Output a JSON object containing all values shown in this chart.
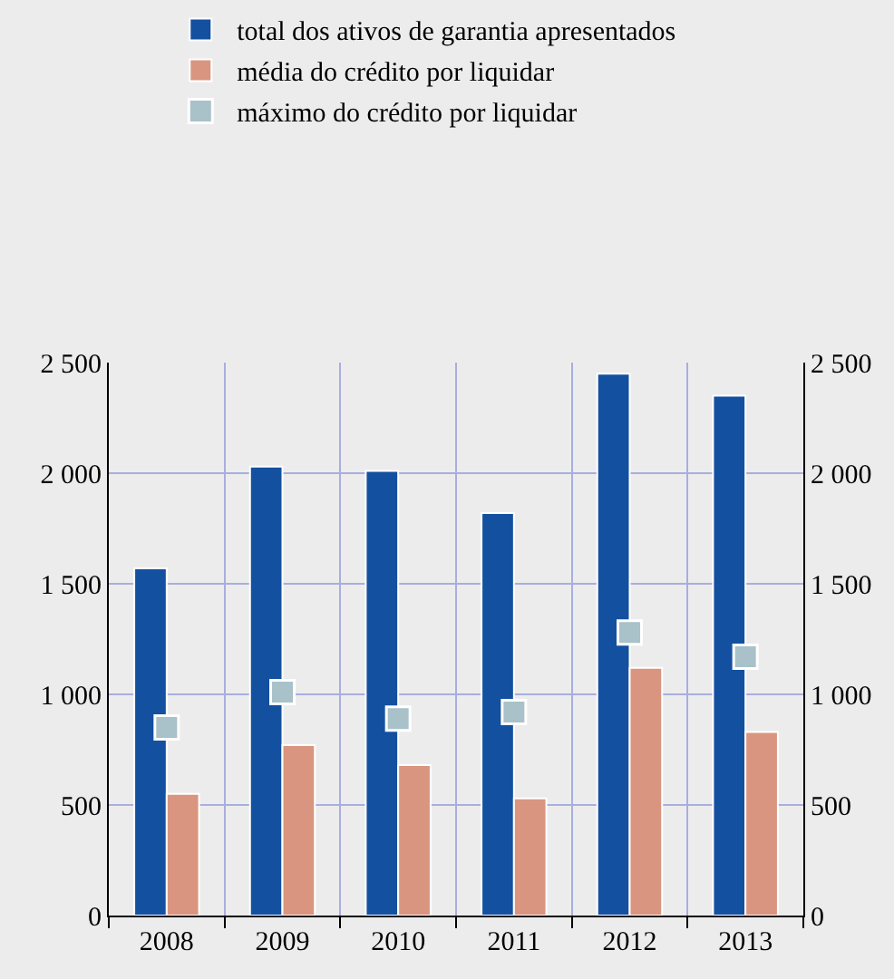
{
  "chart_data": {
    "type": "bar",
    "categories": [
      "2008",
      "2009",
      "2010",
      "2011",
      "2012",
      "2013"
    ],
    "series": [
      {
        "name": "total dos ativos de garantia apresentados",
        "color": "#1450a0",
        "values": [
          1570,
          2030,
          2010,
          1820,
          2450,
          2350
        ]
      },
      {
        "name": "média do crédito por liquidar",
        "color": "#d9957f",
        "values": [
          550,
          770,
          680,
          530,
          1120,
          830
        ]
      },
      {
        "name": "máximo do crédito por liquidar",
        "type": "scatter",
        "marker": "square",
        "color": "#a9c1c9",
        "values": [
          850,
          1010,
          890,
          920,
          1280,
          1170
        ]
      }
    ],
    "ylim": [
      0,
      2500
    ],
    "yticks": [
      0,
      500,
      {
        "value": 1000,
        "label": "1 000"
      },
      {
        "value": 1500,
        "label": "1 500"
      },
      {
        "value": 2000,
        "label": "2 000"
      },
      {
        "value": 2500,
        "label": "2 500"
      }
    ],
    "y2lim": [
      0,
      2500
    ],
    "y2ticks": [
      0,
      500,
      {
        "value": 1000,
        "label": "1 000"
      },
      {
        "value": 1500,
        "label": "1 500"
      },
      {
        "value": 2000,
        "label": "2 000"
      },
      {
        "value": 2500,
        "label": "2 500"
      }
    ],
    "grid": true,
    "legend": "top left"
  }
}
